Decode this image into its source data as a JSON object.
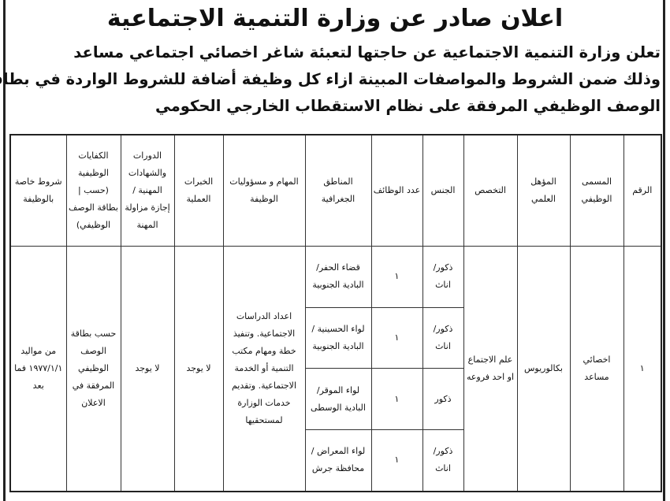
{
  "title": "اعلان صادر عن وزارة التنمية الاجتماعية",
  "intro_lines": [
    "تعلن وزارة التنمية الاجتماعية عن حاجتها لتعبئة شاغر اخصائي اجتماعي مساعد",
    "وذلك ضمن الشروط والمواصفات المبينة ازاء كل وظيفة أضافة للشروط الواردة في بطاقة",
    "الوصف الوظيفي المرفقة على نظام الاستقطاب الخارجي الحكومي"
  ],
  "table": {
    "headers": [
      "الرقم",
      "المسمى الوظيفي",
      "المؤهل العلمي",
      "التخصص",
      "الجنس",
      "عدد الوظائف",
      "المناطق الجغرافية",
      "المهام و مسؤوليات الوظيفة",
      "الخبرات العملية",
      "الدورات والشهادات المهنية / إجازة مزاولة المهنة",
      "الكفايات الوظيفية (حسب | بطاقة الوصف الوظيفي)",
      "شروط خاصة بالوظيفة"
    ],
    "row": {
      "number": "١",
      "job_title": "اخصائي مساعد",
      "qualification": "بكالوريوس",
      "specialization": "علم الاجتماع او احد فروعه",
      "tasks": "اعداد الدراسات الاجتماعية. وتنفيذ خطة ومهام مكتب التنمية أو الخدمة الاجتماعية. وتقديم خدمات الوزارة لمستحقيها",
      "experience": "لا يوجد",
      "courses": "لا يوجد",
      "competencies": "حسب بطاقة الوصف الوظيفي المرفقة في الاعلان",
      "special_conditions": "من مواليد ١٩٧٧/١/١ فما بعد",
      "regions": [
        {
          "gender": "ذكور/ اناث",
          "count": "١",
          "region": "قضاء الحفر/ البادية الجنوبية"
        },
        {
          "gender": "ذكور/ اناث",
          "count": "١",
          "region": "لواء الحسينية /البادية الجنوبية"
        },
        {
          "gender": "ذكور",
          "count": "١",
          "region": "لواء الموقر/ البادية الوسطى"
        },
        {
          "gender": "ذكور/ اناث",
          "count": "١",
          "region": "لواء المعراض /محافظة جرش"
        }
      ]
    }
  }
}
